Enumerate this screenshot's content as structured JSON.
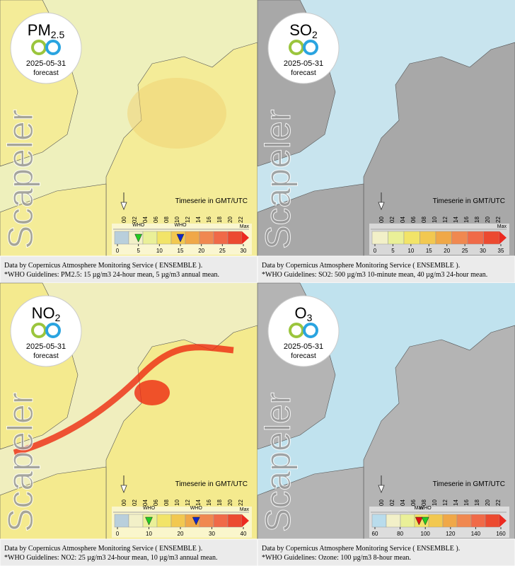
{
  "panels": [
    {
      "title": "PM",
      "title_sub": "2.5",
      "date": "2025-05-31",
      "forecast": "forecast",
      "watermark": "Scapeler",
      "timeserie": "Timeserie in GMT/UTC",
      "hours": [
        "00",
        "02",
        "04",
        "06",
        "08",
        "10",
        "12",
        "14",
        "16",
        "18",
        "20",
        "22"
      ],
      "scale_ticks": [
        0,
        5,
        10,
        15,
        20,
        25,
        30
      ],
      "scale_max": "Max",
      "scale_colors": [
        "#b9cfdc",
        "#f2f0c8",
        "#eaf098",
        "#f2e468",
        "#f2c850",
        "#f0a848",
        "#f08850",
        "#f06a48",
        "#ec4a30"
      ],
      "who": [
        {
          "label": "WHO",
          "value": 5,
          "color": "#22cc22"
        },
        {
          "label": "WHO",
          "value": 15,
          "color": "#1028c8"
        }
      ],
      "credit": "Data by Copernicus Atmosphere Monitoring Service ( ENSEMBLE ).",
      "guidelines": "*WHO Guidelines: PM2.5: 15 µg/m3 24-hour mean, 5 µg/m3 annual mean."
    },
    {
      "title": "SO",
      "title_sub": "2",
      "date": "2025-05-31",
      "forecast": "forecast",
      "watermark": "Scapeler",
      "timeserie": "Timeserie in GMT/UTC",
      "hours": [
        "00",
        "02",
        "04",
        "06",
        "08",
        "10",
        "12",
        "14",
        "16",
        "18",
        "20",
        "22"
      ],
      "scale_ticks": [
        0,
        5,
        10,
        15,
        20,
        25,
        30,
        35
      ],
      "scale_max": "Max",
      "scale_colors": [
        "#f2f0c8",
        "#eaf098",
        "#f2e468",
        "#f2c850",
        "#f0a848",
        "#f08850",
        "#f06a48",
        "#ec4a30"
      ],
      "who": [],
      "credit": "Data by Copernicus Atmosphere Monitoring Service ( ENSEMBLE ).",
      "guidelines": "*WHO Guidelines: SO2: 500 µg/m3 10-minute mean, 40 µg/m3 24-hour mean."
    },
    {
      "title": "NO",
      "title_sub": "2",
      "date": "2025-05-31",
      "forecast": "forecast",
      "watermark": "Scapeler",
      "timeserie": "Timeserie in GMT/UTC",
      "hours": [
        "00",
        "02",
        "04",
        "06",
        "08",
        "10",
        "12",
        "14",
        "16",
        "18",
        "20",
        "22"
      ],
      "scale_ticks": [
        0,
        10,
        20,
        30,
        40
      ],
      "scale_max": "Max",
      "scale_colors": [
        "#b9cfdc",
        "#f2f0c8",
        "#eaf098",
        "#f2e468",
        "#f2c850",
        "#f0a848",
        "#f08850",
        "#f06a48",
        "#ec4a30"
      ],
      "who": [
        {
          "label": "WHO",
          "value": 10,
          "color": "#22cc22"
        },
        {
          "label": "WHO",
          "value": 25,
          "color": "#1028c8"
        }
      ],
      "credit": "Data by Copernicus Atmosphere Monitoring Service ( ENSEMBLE ).",
      "guidelines": "*WHO Guidelines: NO2: 25 µg/m3 24-hour mean, 10 µg/m3 annual mean."
    },
    {
      "title": "O",
      "title_sub": "3",
      "date": "2025-05-31",
      "forecast": "forecast",
      "watermark": "Scapeler",
      "timeserie": "Timeserie in GMT/UTC",
      "hours": [
        "00",
        "02",
        "04",
        "06",
        "08",
        "10",
        "12",
        "14",
        "16",
        "18",
        "20",
        "22"
      ],
      "scale_ticks": [
        60,
        80,
        100,
        120,
        140,
        160
      ],
      "scale_colors": [
        "#b9dcec",
        "#f2f0c8",
        "#eaf098",
        "#f2e468",
        "#f2c850",
        "#f0a848",
        "#f08850",
        "#f06a48",
        "#ec4a30"
      ],
      "who": [
        {
          "label": "Max",
          "value": 95,
          "color": "#dd1111"
        },
        {
          "label": "WHO",
          "value": 100,
          "color": "#22cc22"
        }
      ],
      "credit": "Data by Copernicus Atmosphere Monitoring Service ( ENSEMBLE ).",
      "guidelines": "*WHO Guidelines: Ozone: 100 µg/m3 8-hour mean."
    }
  ]
}
